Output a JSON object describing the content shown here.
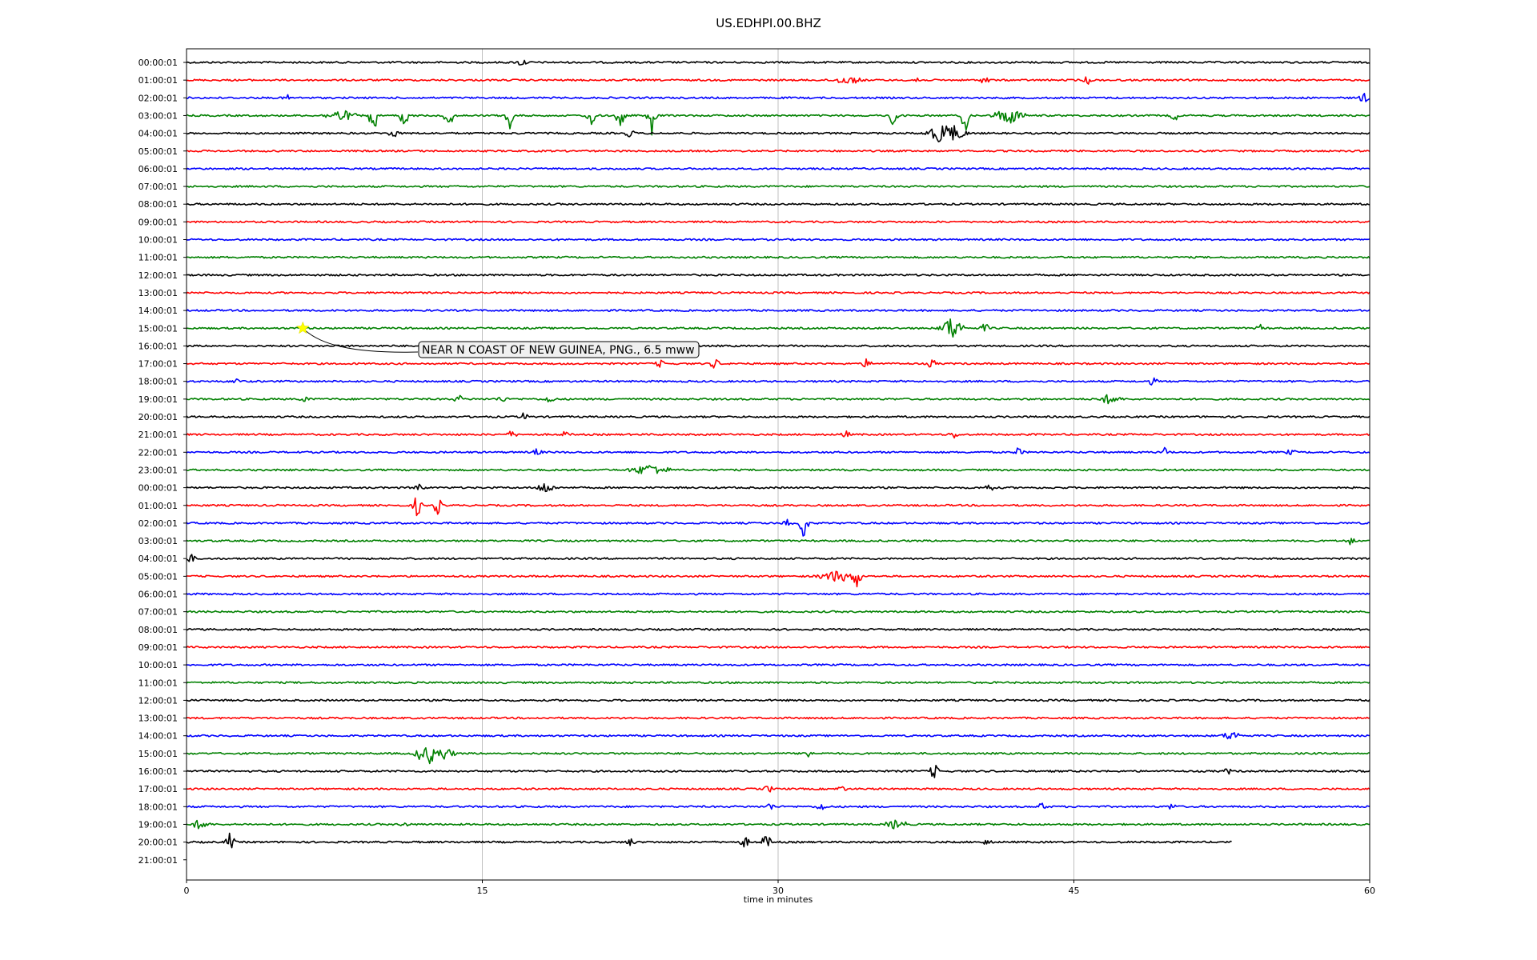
{
  "chart_data": {
    "type": "line",
    "title": "US.EDHPI.00.BHZ",
    "xlabel": "time in minutes",
    "xlim": [
      0,
      60
    ],
    "xticks": [
      "0",
      "15",
      "30",
      "45",
      "60"
    ],
    "xtick_values": [
      0,
      15,
      30,
      45,
      60
    ],
    "grid": "vertical at x ticks",
    "color_cycle": [
      "#000000",
      "#ff0000",
      "#0000ff",
      "#008000"
    ],
    "rows": [
      {
        "label": "00:00:01",
        "color": "black"
      },
      {
        "label": "01:00:01",
        "color": "red"
      },
      {
        "label": "02:00:01",
        "color": "blue"
      },
      {
        "label": "03:00:01",
        "color": "green"
      },
      {
        "label": "04:00:01",
        "color": "black"
      },
      {
        "label": "05:00:01",
        "color": "red"
      },
      {
        "label": "06:00:01",
        "color": "blue"
      },
      {
        "label": "07:00:01",
        "color": "green"
      },
      {
        "label": "08:00:01",
        "color": "black"
      },
      {
        "label": "09:00:01",
        "color": "red"
      },
      {
        "label": "10:00:01",
        "color": "blue"
      },
      {
        "label": "11:00:01",
        "color": "green"
      },
      {
        "label": "12:00:01",
        "color": "black"
      },
      {
        "label": "13:00:01",
        "color": "red"
      },
      {
        "label": "14:00:01",
        "color": "blue"
      },
      {
        "label": "15:00:01",
        "color": "green"
      },
      {
        "label": "16:00:01",
        "color": "black"
      },
      {
        "label": "17:00:01",
        "color": "red"
      },
      {
        "label": "18:00:01",
        "color": "blue"
      },
      {
        "label": "19:00:01",
        "color": "green"
      },
      {
        "label": "20:00:01",
        "color": "black"
      },
      {
        "label": "21:00:01",
        "color": "red"
      },
      {
        "label": "22:00:01",
        "color": "blue"
      },
      {
        "label": "23:00:01",
        "color": "green"
      },
      {
        "label": "00:00:01",
        "color": "black"
      },
      {
        "label": "01:00:01",
        "color": "red"
      },
      {
        "label": "02:00:01",
        "color": "blue"
      },
      {
        "label": "03:00:01",
        "color": "green"
      },
      {
        "label": "04:00:01",
        "color": "black"
      },
      {
        "label": "05:00:01",
        "color": "red"
      },
      {
        "label": "06:00:01",
        "color": "blue"
      },
      {
        "label": "07:00:01",
        "color": "green"
      },
      {
        "label": "08:00:01",
        "color": "black"
      },
      {
        "label": "09:00:01",
        "color": "red"
      },
      {
        "label": "10:00:01",
        "color": "blue"
      },
      {
        "label": "11:00:01",
        "color": "green"
      },
      {
        "label": "12:00:01",
        "color": "black"
      },
      {
        "label": "13:00:01",
        "color": "red"
      },
      {
        "label": "14:00:01",
        "color": "blue"
      },
      {
        "label": "15:00:01",
        "color": "green"
      },
      {
        "label": "16:00:01",
        "color": "black"
      },
      {
        "label": "17:00:01",
        "color": "red"
      },
      {
        "label": "18:00:01",
        "color": "blue"
      },
      {
        "label": "19:00:01",
        "color": "green"
      },
      {
        "label": "20:00:01",
        "color": "black",
        "end_minute": 53.0
      },
      {
        "label": "21:00:01",
        "color": "red",
        "empty": true
      }
    ],
    "bursts": [
      {
        "row": 0,
        "minute": 17.0,
        "amp": 0.5
      },
      {
        "row": 1,
        "minute": 33.5,
        "amp": 0.4,
        "width": 2.0
      },
      {
        "row": 1,
        "minute": 37.0,
        "amp": 0.5
      },
      {
        "row": 1,
        "minute": 40.5,
        "amp": 0.5
      },
      {
        "row": 1,
        "minute": 45.7,
        "amp": 0.4
      },
      {
        "row": 2,
        "minute": 5.1,
        "amp": 0.3
      },
      {
        "row": 2,
        "minute": 59.7,
        "amp": 0.6
      },
      {
        "row": 3,
        "minute": 7.8,
        "amp": 0.6,
        "width": 2.0
      },
      {
        "row": 3,
        "minute": 9.5,
        "amp": -1.4
      },
      {
        "row": 3,
        "minute": 11.0,
        "amp": -0.9
      },
      {
        "row": 3,
        "minute": 13.3,
        "amp": -0.8
      },
      {
        "row": 3,
        "minute": 16.4,
        "amp": -0.9
      },
      {
        "row": 3,
        "minute": 20.5,
        "amp": -0.8
      },
      {
        "row": 3,
        "minute": 22.0,
        "amp": -0.7
      },
      {
        "row": 3,
        "minute": 23.6,
        "amp": -1.2
      },
      {
        "row": 3,
        "minute": 35.8,
        "amp": -0.8
      },
      {
        "row": 3,
        "minute": 39.5,
        "amp": -0.9
      },
      {
        "row": 3,
        "minute": 41.7,
        "amp": 0.9,
        "width": 2.0
      },
      {
        "row": 3,
        "minute": 50.1,
        "amp": 0.6
      },
      {
        "row": 4,
        "minute": 10.5,
        "amp": 0.6
      },
      {
        "row": 4,
        "minute": 22.5,
        "amp": -0.5
      },
      {
        "row": 4,
        "minute": 38.5,
        "amp": 1.2,
        "width": 2.5
      },
      {
        "row": 15,
        "minute": 38.8,
        "amp": 1.3,
        "width": 1.5
      },
      {
        "row": 15,
        "minute": 40.5,
        "amp": 0.5
      },
      {
        "row": 15,
        "minute": 54.5,
        "amp": 0.4
      },
      {
        "row": 17,
        "minute": 24.0,
        "amp": 0.4
      },
      {
        "row": 17,
        "minute": 26.8,
        "amp": 0.6
      },
      {
        "row": 17,
        "minute": 34.5,
        "amp": 0.5
      },
      {
        "row": 17,
        "minute": 37.8,
        "amp": 0.5
      },
      {
        "row": 18,
        "minute": 2.5,
        "amp": 0.4
      },
      {
        "row": 18,
        "minute": 49.0,
        "amp": 0.4
      },
      {
        "row": 19,
        "minute": 6.0,
        "amp": 0.4
      },
      {
        "row": 19,
        "minute": 13.8,
        "amp": 0.4
      },
      {
        "row": 19,
        "minute": 16.0,
        "amp": 0.4
      },
      {
        "row": 19,
        "minute": 18.4,
        "amp": 0.5
      },
      {
        "row": 19,
        "minute": 46.8,
        "amp": 0.5,
        "width": 1.5
      },
      {
        "row": 20,
        "minute": 17.1,
        "amp": 0.4
      },
      {
        "row": 21,
        "minute": 16.5,
        "amp": 0.4
      },
      {
        "row": 21,
        "minute": 19.2,
        "amp": 0.3
      },
      {
        "row": 21,
        "minute": 33.4,
        "amp": 0.4
      },
      {
        "row": 21,
        "minute": 38.9,
        "amp": 0.4
      },
      {
        "row": 22,
        "minute": 17.8,
        "amp": 0.4
      },
      {
        "row": 22,
        "minute": 42.2,
        "amp": 0.5
      },
      {
        "row": 22,
        "minute": 49.6,
        "amp": 0.5
      },
      {
        "row": 22,
        "minute": 56.0,
        "amp": 0.3
      },
      {
        "row": 23,
        "minute": 23.5,
        "amp": -0.6,
        "width": 2.5
      },
      {
        "row": 24,
        "minute": 11.8,
        "amp": 0.5
      },
      {
        "row": 24,
        "minute": 18.2,
        "amp": 0.6,
        "width": 1.2
      },
      {
        "row": 24,
        "minute": 40.7,
        "amp": 0.5
      },
      {
        "row": 25,
        "minute": 11.7,
        "amp": 1.2
      },
      {
        "row": 25,
        "minute": 12.7,
        "amp": 1.1
      },
      {
        "row": 26,
        "minute": 30.5,
        "amp": 0.5
      },
      {
        "row": 26,
        "minute": 31.3,
        "amp": -0.9
      },
      {
        "row": 27,
        "minute": 59.0,
        "amp": 0.4
      },
      {
        "row": 28,
        "minute": 0.2,
        "amp": 0.5
      },
      {
        "row": 29,
        "minute": 33.0,
        "amp": 0.6,
        "width": 2.5
      },
      {
        "row": 29,
        "minute": 34.0,
        "amp": 1.2
      },
      {
        "row": 38,
        "minute": 53.0,
        "amp": 0.5,
        "width": 1.2
      },
      {
        "row": 39,
        "minute": 11.8,
        "amp": 1.0
      },
      {
        "row": 39,
        "minute": 12.3,
        "amp": 1.3
      },
      {
        "row": 39,
        "minute": 13.0,
        "amp": 0.7,
        "width": 1.5
      },
      {
        "row": 39,
        "minute": 31.5,
        "amp": 0.7
      },
      {
        "row": 40,
        "minute": 37.9,
        "amp": 0.9
      },
      {
        "row": 40,
        "minute": 52.8,
        "amp": 0.3
      },
      {
        "row": 41,
        "minute": 29.5,
        "amp": 0.4
      },
      {
        "row": 41,
        "minute": 33.2,
        "amp": 0.4
      },
      {
        "row": 42,
        "minute": 29.6,
        "amp": 0.4
      },
      {
        "row": 42,
        "minute": 32.2,
        "amp": 0.5
      },
      {
        "row": 42,
        "minute": 43.4,
        "amp": 0.4
      },
      {
        "row": 42,
        "minute": 50.0,
        "amp": 0.4
      },
      {
        "row": 43,
        "minute": 0.7,
        "amp": 0.5,
        "width": 1.2
      },
      {
        "row": 43,
        "minute": 11.1,
        "amp": 0.3
      },
      {
        "row": 43,
        "minute": 36.0,
        "amp": 0.5,
        "width": 1.5
      },
      {
        "row": 44,
        "minute": 2.2,
        "amp": 1.0
      },
      {
        "row": 44,
        "minute": 22.5,
        "amp": 0.4
      },
      {
        "row": 44,
        "minute": 28.3,
        "amp": 0.6
      },
      {
        "row": 44,
        "minute": 29.4,
        "amp": 0.9
      },
      {
        "row": 44,
        "minute": 40.6,
        "amp": 0.3
      }
    ],
    "annotations": [
      {
        "text": "NEAR N COAST OF NEW GUINEA, PNG., 6.5 mww",
        "row": 15,
        "minute": 5.9,
        "marker": "star",
        "marker_color": "#ffff00"
      }
    ]
  }
}
